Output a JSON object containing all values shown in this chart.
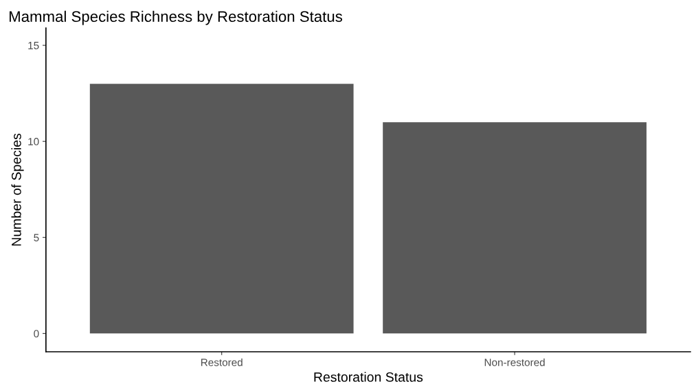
{
  "chart_data": {
    "type": "bar",
    "title": "Mammal Species Richness by Restoration Status",
    "xlabel": "Restoration Status",
    "ylabel": "Number of Species",
    "categories": [
      "Restored",
      "Non-restored"
    ],
    "values": [
      13,
      11
    ],
    "color": "#595959",
    "ylim": [
      -0.95,
      15.9
    ],
    "yticks": [
      0,
      5,
      10,
      15
    ],
    "grid": false
  }
}
